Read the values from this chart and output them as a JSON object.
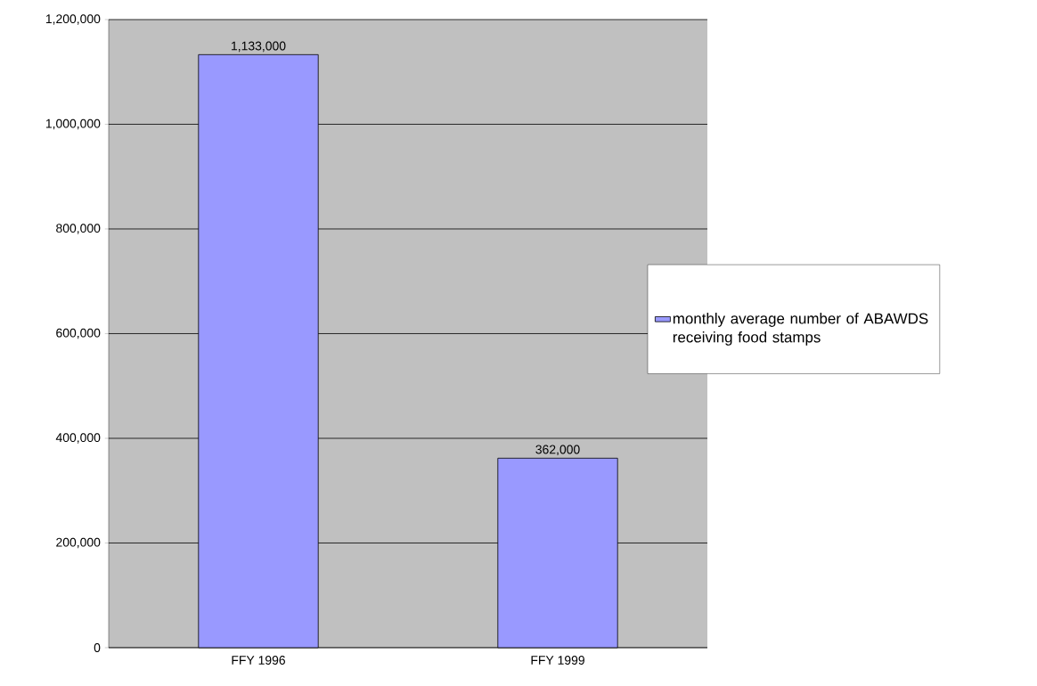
{
  "chart_data": {
    "type": "bar",
    "categories": [
      "FFY 1996",
      "FFY 1999"
    ],
    "series": [
      {
        "name": "monthly average number of ABAWDS receiving food stamps",
        "color": "#9999ff",
        "values": [
          1133000,
          362000
        ],
        "value_labels": [
          "1,133,000",
          "362,000"
        ]
      }
    ],
    "ylim": [
      0,
      1200000
    ],
    "yticks": [
      0,
      {
        "value": 200000,
        "label": "200,000"
      },
      {
        "value": 400000,
        "label": "400,000"
      },
      {
        "value": 600000,
        "label": "600,000"
      },
      {
        "value": 800000,
        "label": "800,000"
      },
      {
        "value": 1000000,
        "label": "1,000,000"
      },
      {
        "value": 1200000,
        "label": "1,200,000"
      }
    ],
    "grid": "y",
    "legend": "right"
  }
}
